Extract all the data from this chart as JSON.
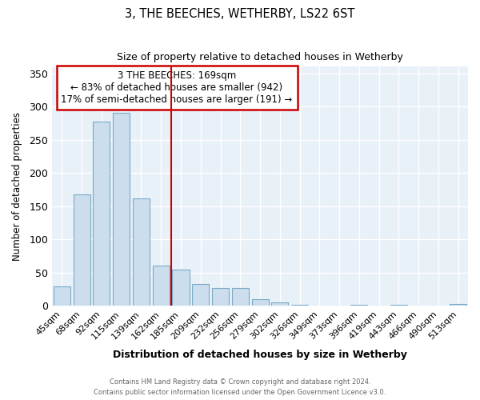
{
  "title": "3, THE BEECHES, WETHERBY, LS22 6ST",
  "subtitle": "Size of property relative to detached houses in Wetherby",
  "xlabel": "Distribution of detached houses by size in Wetherby",
  "ylabel": "Number of detached properties",
  "categories": [
    "45sqm",
    "68sqm",
    "92sqm",
    "115sqm",
    "139sqm",
    "162sqm",
    "185sqm",
    "209sqm",
    "232sqm",
    "256sqm",
    "279sqm",
    "302sqm",
    "326sqm",
    "349sqm",
    "373sqm",
    "396sqm",
    "419sqm",
    "443sqm",
    "466sqm",
    "490sqm",
    "513sqm"
  ],
  "values": [
    29,
    168,
    277,
    290,
    162,
    60,
    54,
    33,
    27,
    27,
    10,
    5,
    1,
    0,
    0,
    1,
    0,
    1,
    0,
    0,
    3
  ],
  "bar_color": "#ccdded",
  "bar_edge_color": "#7aaac8",
  "vline_index": 5,
  "vline_color": "#cc0000",
  "annotation_text": "3 THE BEECHES: 169sqm\n← 83% of detached houses are smaller (942)\n17% of semi-detached houses are larger (191) →",
  "annotation_box_color": "white",
  "annotation_box_edge_color": "#cc0000",
  "ylim": [
    0,
    360
  ],
  "yticks": [
    0,
    50,
    100,
    150,
    200,
    250,
    300,
    350
  ],
  "footer_line1": "Contains HM Land Registry data © Crown copyright and database right 2024.",
  "footer_line2": "Contains public sector information licensed under the Open Government Licence v3.0.",
  "plot_bg_color": "#e8f0f8",
  "grid_color": "white"
}
